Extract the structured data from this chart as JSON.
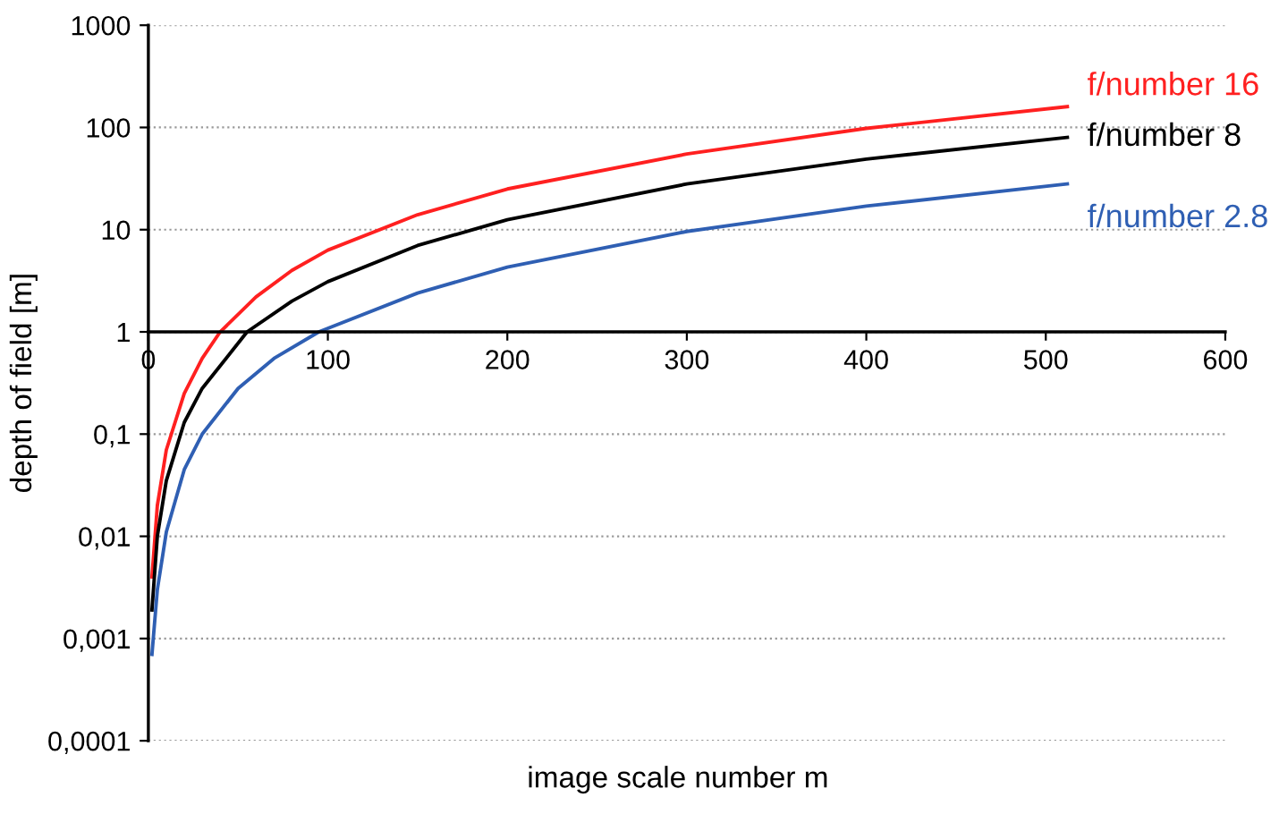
{
  "chart_data": {
    "type": "line",
    "xlabel": "image scale number m",
    "ylabel": "depth of field [m]",
    "log": "y",
    "grid": "y",
    "legend": false,
    "marker": "none",
    "line_style": "solid",
    "xlim": [
      0,
      600
    ],
    "xticks": [
      0,
      100,
      200,
      300,
      400,
      500,
      600
    ],
    "ylim": [
      0.0001,
      1000
    ],
    "yticks": [
      {
        "value": 0.0001,
        "label": "0,0001"
      },
      {
        "value": 0.001,
        "label": "0,001"
      },
      {
        "value": 0.01,
        "label": "0,01"
      },
      {
        "value": 0.1,
        "label": "0,1"
      },
      1,
      10,
      100,
      1000
    ],
    "series": [
      {
        "name": "f/number 16",
        "color": "#ff2020",
        "x": [
          2,
          5,
          10,
          20,
          30,
          40,
          60,
          80,
          100,
          150,
          200,
          300,
          400,
          512
        ],
        "values": [
          0.004,
          0.02,
          0.07,
          0.25,
          0.55,
          1,
          2.2,
          4,
          6.3,
          14,
          25,
          55,
          98,
          160
        ]
      },
      {
        "name": "f/number 8",
        "color": "#000000",
        "x": [
          2,
          5,
          10,
          20,
          30,
          55,
          80,
          100,
          150,
          200,
          300,
          400,
          512
        ],
        "values": [
          0.0019,
          0.01,
          0.035,
          0.13,
          0.28,
          1,
          2,
          3.1,
          7,
          12.5,
          28,
          49,
          80
        ]
      },
      {
        "name": "f/number 2.8",
        "color": "#2f5fb3",
        "x": [
          2,
          5,
          10,
          20,
          30,
          50,
          70,
          95,
          150,
          200,
          300,
          400,
          512
        ],
        "values": [
          0.0007,
          0.003,
          0.011,
          0.045,
          0.1,
          0.28,
          0.55,
          1,
          2.4,
          4.3,
          9.6,
          17,
          28
        ]
      }
    ]
  }
}
